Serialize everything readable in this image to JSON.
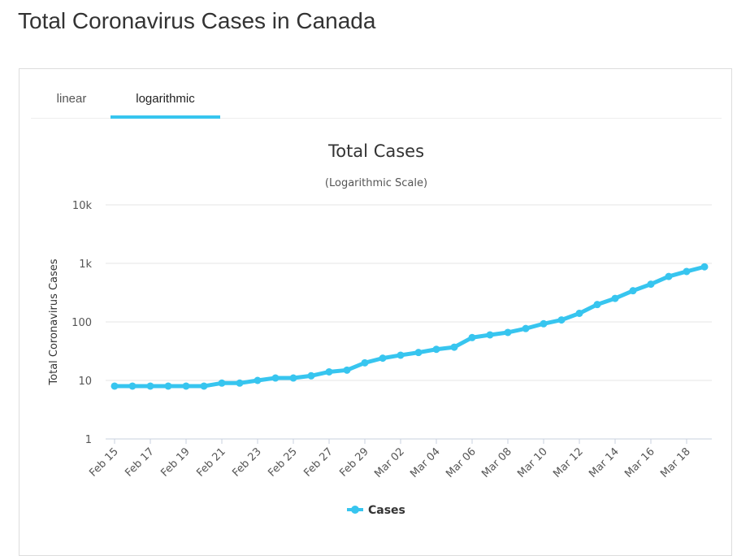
{
  "page": {
    "title": "Total Coronavirus Cases in Canada"
  },
  "tabs": [
    {
      "label": "linear",
      "active": false
    },
    {
      "label": "logarithmic",
      "active": true
    }
  ],
  "colors": {
    "series": "#37c5ef",
    "grid": "#e6e6e6",
    "text": "#333333",
    "tab_indicator": "#37c5ef"
  },
  "chart_data": {
    "type": "line",
    "title": "Total Cases",
    "subtitle": "(Logarithmic Scale)",
    "ylabel": "Total Coronavirus Cases",
    "xlabel": "",
    "y_scale": "log",
    "ylim": [
      1,
      10000
    ],
    "y_ticks": [
      {
        "value": 1,
        "label": "1"
      },
      {
        "value": 10,
        "label": "10"
      },
      {
        "value": 100,
        "label": "100"
      },
      {
        "value": 1000,
        "label": "1k"
      },
      {
        "value": 10000,
        "label": "10k"
      }
    ],
    "x_tick_labels": [
      "Feb 15",
      "Feb 17",
      "Feb 19",
      "Feb 21",
      "Feb 23",
      "Feb 25",
      "Feb 27",
      "Feb 29",
      "Mar 02",
      "Mar 04",
      "Mar 06",
      "Mar 08",
      "Mar 10",
      "Mar 12",
      "Mar 14",
      "Mar 16",
      "Mar 18"
    ],
    "grid": true,
    "legend": {
      "position": "bottom-center"
    },
    "x": [
      "Feb 15",
      "Feb 16",
      "Feb 17",
      "Feb 18",
      "Feb 19",
      "Feb 20",
      "Feb 21",
      "Feb 22",
      "Feb 23",
      "Feb 24",
      "Feb 25",
      "Feb 26",
      "Feb 27",
      "Feb 28",
      "Feb 29",
      "Mar 01",
      "Mar 02",
      "Mar 03",
      "Mar 04",
      "Mar 05",
      "Mar 06",
      "Mar 07",
      "Mar 08",
      "Mar 09",
      "Mar 10",
      "Mar 11",
      "Mar 12",
      "Mar 13",
      "Mar 14",
      "Mar 15",
      "Mar 16",
      "Mar 17",
      "Mar 18",
      "Mar 19"
    ],
    "series": [
      {
        "name": "Cases",
        "values": [
          8,
          8,
          8,
          8,
          8,
          8,
          9,
          9,
          10,
          11,
          11,
          12,
          14,
          15,
          20,
          24,
          27,
          30,
          34,
          37,
          54,
          60,
          66,
          77,
          93,
          108,
          140,
          198,
          252,
          341,
          441,
          598,
          727,
          873
        ]
      }
    ]
  }
}
